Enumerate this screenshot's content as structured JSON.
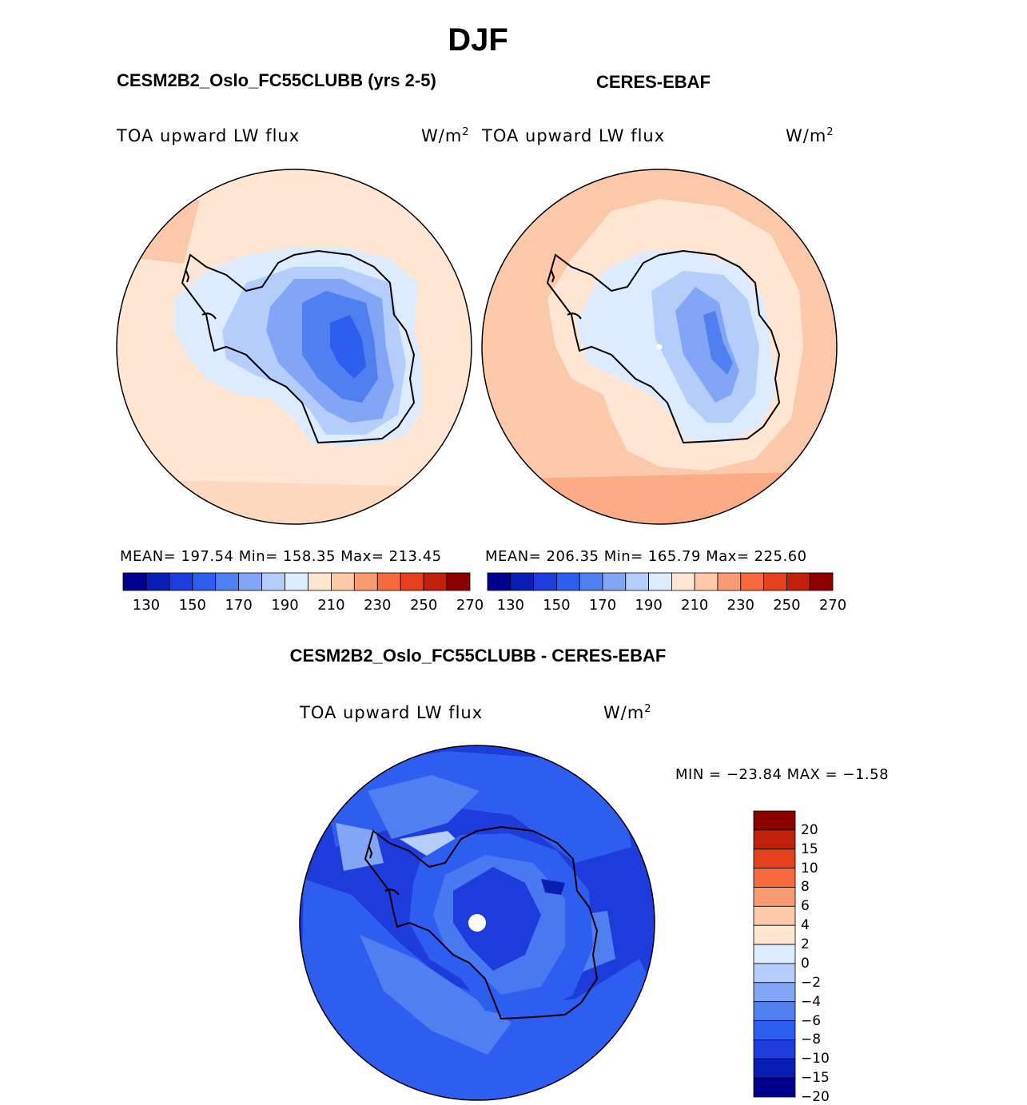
{
  "season": "DJF",
  "panels": {
    "model": {
      "title": "CESM2B2_Oslo_FC55CLUBB (yrs 2-5)",
      "variable": "TOA upward LW flux",
      "units_base": "W/m",
      "units_exp": "2",
      "stats": "MEAN= 197.54   Min= 158.35   Max= 213.45"
    },
    "obs": {
      "title": "CERES-EBAF",
      "variable": "TOA upward LW flux",
      "units_base": "W/m",
      "units_exp": "2",
      "stats": "MEAN= 206.35   Min= 165.79   Max= 225.60"
    },
    "diff": {
      "title": "CESM2B2_Oslo_FC55CLUBB - CERES-EBAF",
      "variable": "TOA upward LW flux",
      "units_base": "W/m",
      "units_exp": "2",
      "stats": "MIN = −23.84 MAX =  −1.58"
    }
  },
  "colorbar_abs": {
    "tick_labels": [
      "130",
      "150",
      "170",
      "190",
      "210",
      "230",
      "250",
      "270"
    ],
    "colors": [
      "#00008c",
      "#0a1eb4",
      "#1e3cdc",
      "#2e5ef0",
      "#5080f0",
      "#82a5f5",
      "#b4cdfa",
      "#dcebfd",
      "#ffe6d2",
      "#fcc8aa",
      "#fa9a70",
      "#f66a3c",
      "#e6401c",
      "#c0200a",
      "#8c0000"
    ]
  },
  "colorbar_diff": {
    "labels": [
      "20",
      "15",
      "10",
      "8",
      "6",
      "4",
      "2",
      "0",
      "−2",
      "−4",
      "−6",
      "−8",
      "−10",
      "−15",
      "−20"
    ],
    "colors": [
      "#8c0000",
      "#c0200a",
      "#e6401c",
      "#f66a3c",
      "#fa9a70",
      "#fcc8aa",
      "#ffe6d2",
      "#dcebfd",
      "#b4cdfa",
      "#82a5f5",
      "#5080f0",
      "#2e5ef0",
      "#1e3cdc",
      "#0a1eb4",
      "#00008c"
    ]
  }
}
